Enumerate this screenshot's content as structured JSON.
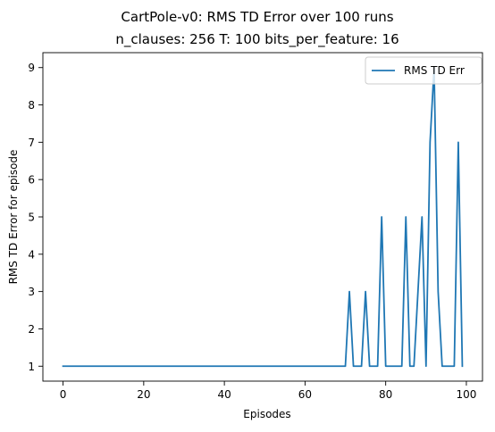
{
  "chart_data": {
    "type": "line",
    "suptitle": "CartPole-v0: RMS TD Error over 100 runs",
    "title": "n_clauses: 256 T: 100 bits_per_feature: 16",
    "xlabel": "Episodes",
    "ylabel": "RMS TD Error for episode",
    "xlim": [
      -5,
      104
    ],
    "ylim": [
      0.6,
      9.4
    ],
    "xticks": [
      0,
      20,
      40,
      60,
      80,
      100
    ],
    "yticks": [
      1,
      2,
      3,
      4,
      5,
      6,
      7,
      8,
      9
    ],
    "xtick_labels": [
      "0",
      "20",
      "40",
      "60",
      "80",
      "100"
    ],
    "ytick_labels": [
      "1",
      "2",
      "3",
      "4",
      "5",
      "6",
      "7",
      "8",
      "9"
    ],
    "grid": false,
    "legend_position": "top-right",
    "series": [
      {
        "name": "RMS TD Err",
        "color": "#1f77b4",
        "x": [
          0,
          1,
          2,
          3,
          4,
          5,
          6,
          7,
          8,
          9,
          10,
          11,
          12,
          13,
          14,
          15,
          16,
          17,
          18,
          19,
          20,
          21,
          22,
          23,
          24,
          25,
          26,
          27,
          28,
          29,
          30,
          31,
          32,
          33,
          34,
          35,
          36,
          37,
          38,
          39,
          40,
          41,
          42,
          43,
          44,
          45,
          46,
          47,
          48,
          49,
          50,
          51,
          52,
          53,
          54,
          55,
          56,
          57,
          58,
          59,
          60,
          61,
          62,
          63,
          64,
          65,
          66,
          67,
          68,
          69,
          70,
          71,
          72,
          73,
          74,
          75,
          76,
          77,
          78,
          79,
          80,
          81,
          82,
          83,
          84,
          85,
          86,
          87,
          88,
          89,
          90,
          91,
          92,
          93,
          94,
          95,
          96,
          97,
          98,
          99
        ],
        "y": [
          1,
          1,
          1,
          1,
          1,
          1,
          1,
          1,
          1,
          1,
          1,
          1,
          1,
          1,
          1,
          1,
          1,
          1,
          1,
          1,
          1,
          1,
          1,
          1,
          1,
          1,
          1,
          1,
          1,
          1,
          1,
          1,
          1,
          1,
          1,
          1,
          1,
          1,
          1,
          1,
          1,
          1,
          1,
          1,
          1,
          1,
          1,
          1,
          1,
          1,
          1,
          1,
          1,
          1,
          1,
          1,
          1,
          1,
          1,
          1,
          1,
          1,
          1,
          1,
          1,
          1,
          1,
          1,
          1,
          1,
          1,
          3,
          1,
          1,
          1,
          3,
          1,
          1,
          1,
          5,
          1,
          1,
          1,
          1,
          1,
          5,
          1,
          1,
          3,
          5,
          1,
          7,
          9,
          3,
          1,
          1,
          1,
          1,
          7,
          1
        ]
      }
    ]
  }
}
